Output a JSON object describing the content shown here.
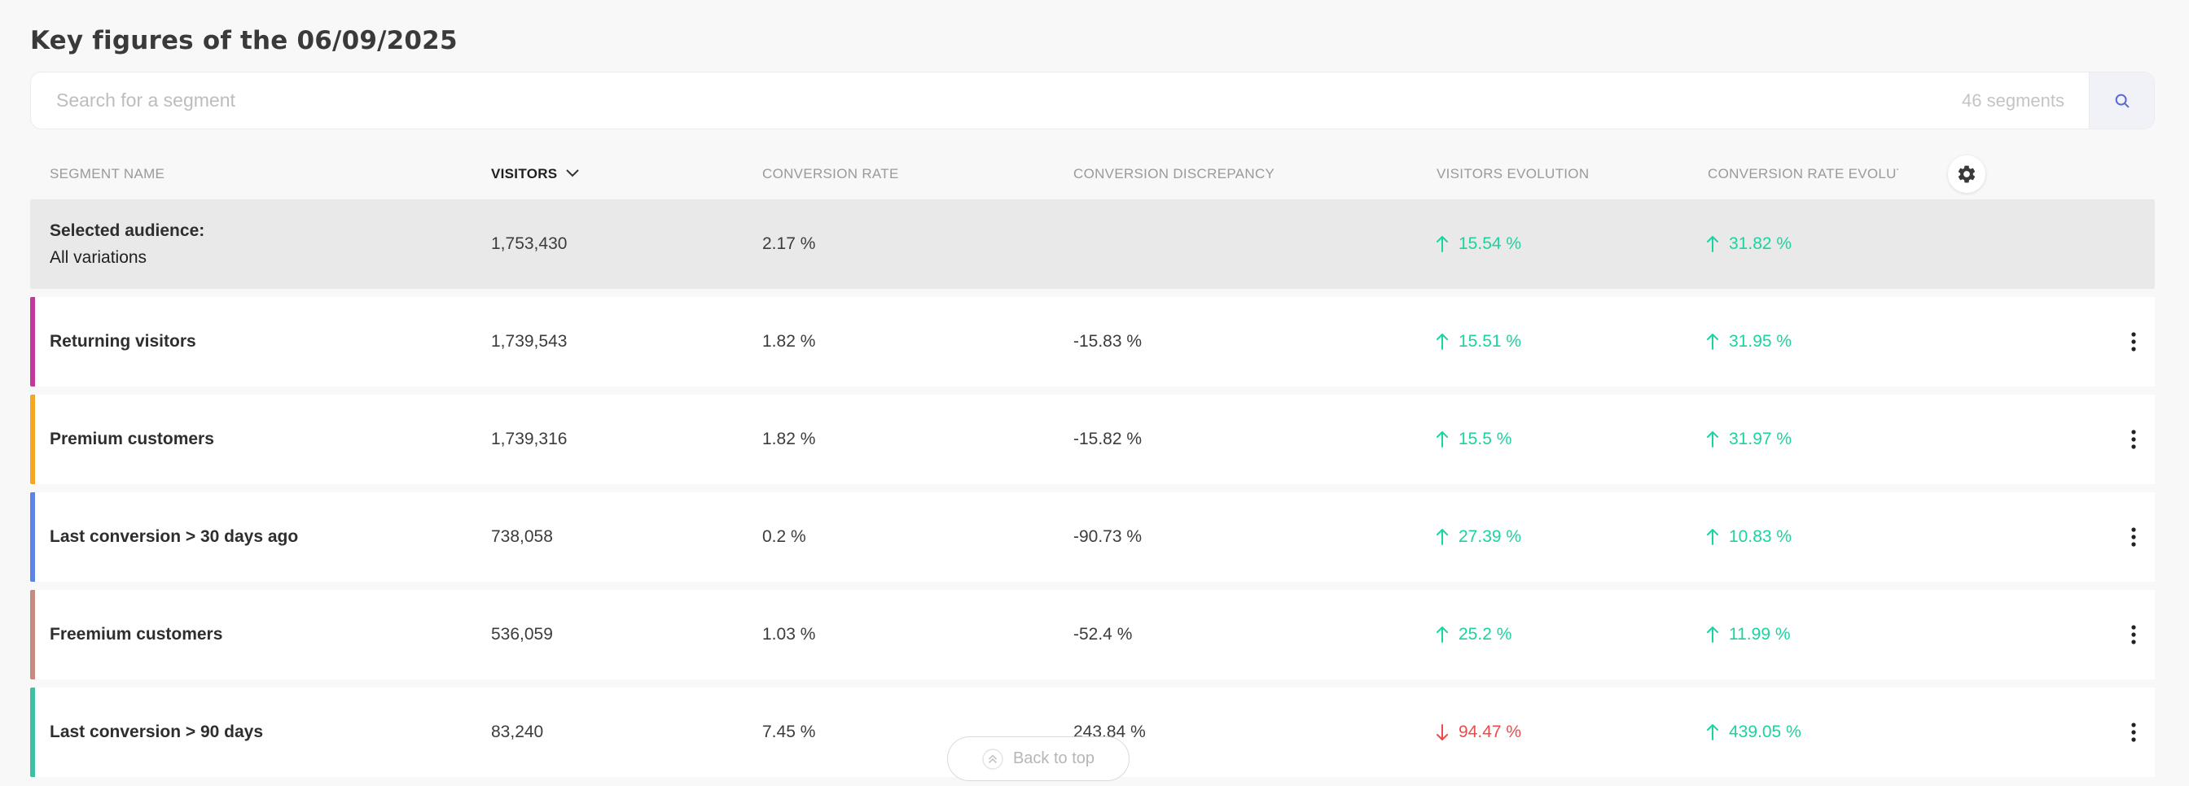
{
  "page": {
    "title": "Key figures of the 06/09/2025"
  },
  "search": {
    "placeholder": "Search for a segment",
    "count_label": "46 segments",
    "icon": "search-icon"
  },
  "columns": {
    "segment_name": "SEGMENT NAME",
    "visitors": "VISITORS",
    "conversion_rate": "CONVERSION RATE",
    "conversion_discrepancy": "CONVERSION DISCREPANCY",
    "visitors_evolution": "VISITORS EVOLUTION",
    "conversion_rate_evolution": "CONVERSION RATE EVOLUTION"
  },
  "sort": {
    "column": "visitors",
    "direction": "descending",
    "icon": "chevron-down-icon"
  },
  "selected_row": {
    "label_line1": "Selected audience:",
    "label_line2": "All variations",
    "visitors": "1,753,430",
    "conversion_rate": "2.17 %",
    "conversion_discrepancy": "",
    "visitors_evolution": "15.54 %",
    "visitors_evolution_direction": "up",
    "conversion_rate_evolution": "31.82 %",
    "conversion_rate_evolution_direction": "up"
  },
  "rows": [
    {
      "name": "Returning visitors",
      "color": "#c2399b",
      "visitors": "1,739,543",
      "conversion_rate": "1.82 %",
      "conversion_discrepancy": "-15.83 %",
      "visitors_evolution": "15.51 %",
      "visitors_evolution_direction": "up",
      "conversion_rate_evolution": "31.95 %",
      "conversion_rate_evolution_direction": "up"
    },
    {
      "name": "Premium customers",
      "color": "#f5a623",
      "visitors": "1,739,316",
      "conversion_rate": "1.82 %",
      "conversion_discrepancy": "-15.82 %",
      "visitors_evolution": "15.5 %",
      "visitors_evolution_direction": "up",
      "conversion_rate_evolution": "31.97 %",
      "conversion_rate_evolution_direction": "up"
    },
    {
      "name": "Last conversion > 30 days ago",
      "color": "#5b84e6",
      "visitors": "738,058",
      "conversion_rate": "0.2 %",
      "conversion_discrepancy": "-90.73 %",
      "visitors_evolution": "27.39 %",
      "visitors_evolution_direction": "up",
      "conversion_rate_evolution": "10.83 %",
      "conversion_rate_evolution_direction": "up"
    },
    {
      "name": "Freemium customers",
      "color": "#c78a80",
      "visitors": "536,059",
      "conversion_rate": "1.03 %",
      "conversion_discrepancy": "-52.4 %",
      "visitors_evolution": "25.2 %",
      "visitors_evolution_direction": "up",
      "conversion_rate_evolution": "11.99 %",
      "conversion_rate_evolution_direction": "up"
    },
    {
      "name": "Last conversion > 90 days",
      "color": "#3cbfa3",
      "visitors": "83,240",
      "conversion_rate": "7.45 %",
      "conversion_discrepancy": "243.84 %",
      "visitors_evolution": "94.47 %",
      "visitors_evolution_direction": "down",
      "conversion_rate_evolution": "439.05 %",
      "conversion_rate_evolution_direction": "up"
    }
  ],
  "back_to_top": {
    "label": "Back to top"
  },
  "colors": {
    "up": "#1ad4a0",
    "down": "#ef4a4a",
    "accent": "#5b67d8"
  }
}
